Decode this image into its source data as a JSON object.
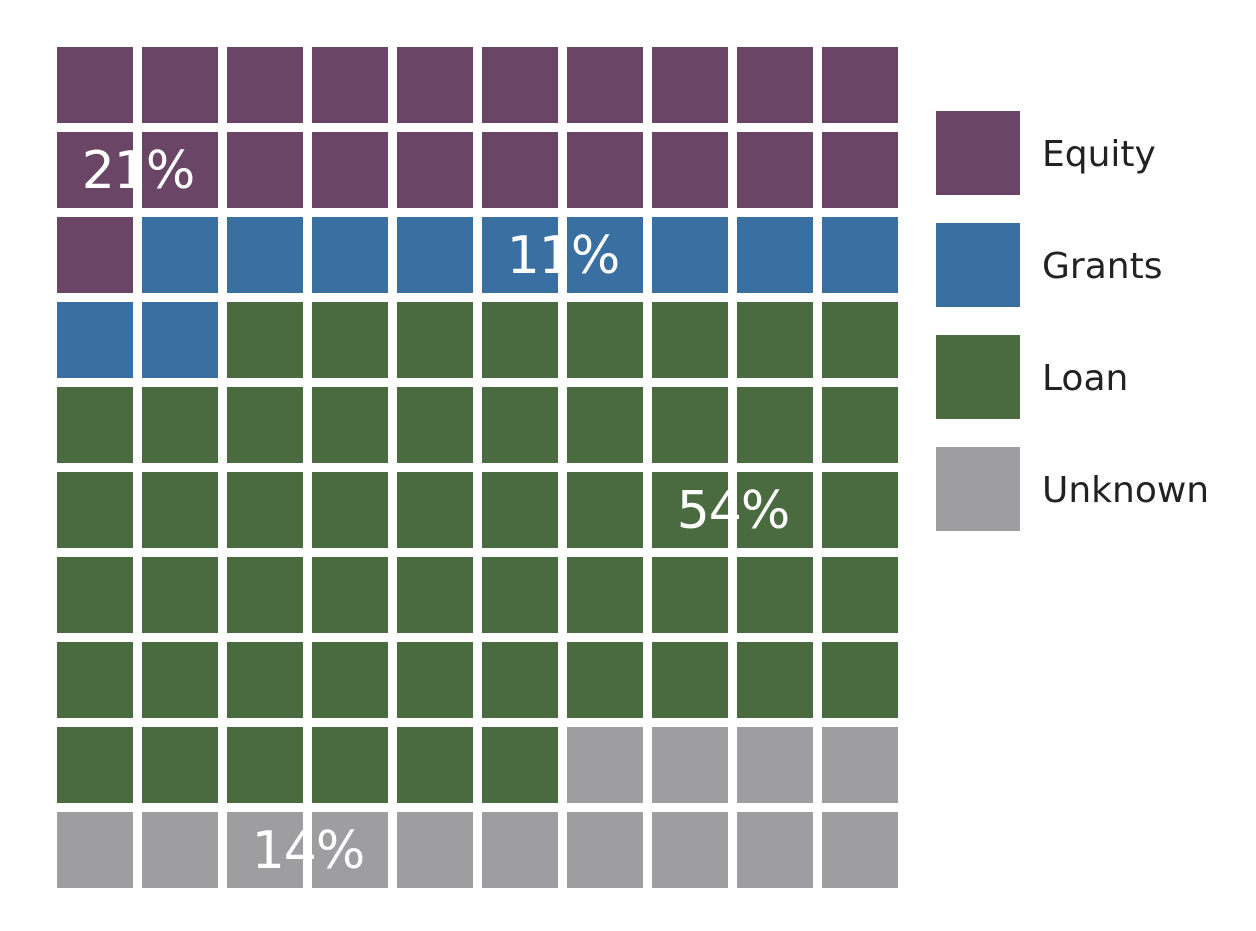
{
  "chart_data": {
    "type": "waffle",
    "grid": {
      "rows": 10,
      "columns": 10
    },
    "fill_order": "row-major, left-to-right, top-to-bottom",
    "title": "",
    "series": [
      {
        "name": "Equity",
        "value": 21,
        "label": "21%",
        "color": "#6b4566"
      },
      {
        "name": "Grants",
        "value": 11,
        "label": "11%",
        "color": "#3a6fa1"
      },
      {
        "name": "Loan",
        "value": 54,
        "label": "54%",
        "color": "#4a6b40"
      },
      {
        "name": "Unknown",
        "value": 14,
        "label": "14%",
        "color": "#9e9d9f"
      }
    ],
    "legend": {
      "placement": "right"
    }
  }
}
